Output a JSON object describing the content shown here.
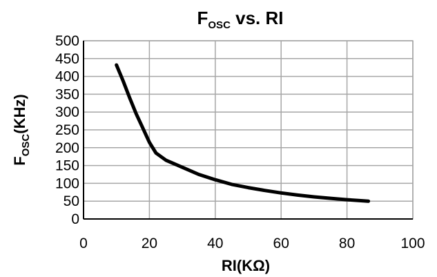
{
  "chart_data": {
    "type": "line",
    "title": {
      "main": "F",
      "sub": "OSC",
      "rest": " vs.  RI"
    },
    "xlabel": "RI(KΩ)",
    "ylabel": {
      "main": "F",
      "sub": "OSC",
      "rest": "(KHz)"
    },
    "xlim": [
      0,
      100
    ],
    "ylim": [
      0,
      500
    ],
    "xticks": [
      0,
      20,
      40,
      60,
      80,
      100
    ],
    "yticks": [
      0,
      50,
      100,
      150,
      200,
      250,
      300,
      350,
      400,
      450,
      500
    ],
    "grid": true,
    "legend": "none",
    "line_color": "#000000",
    "grid_color": "#a6a6a6",
    "series": [
      {
        "x": [
          10,
          12,
          14,
          16,
          18,
          20,
          22,
          25,
          30,
          35,
          40,
          45,
          50,
          55,
          60,
          65,
          70,
          75,
          80,
          85,
          86.5
        ],
        "values": [
          432,
          388,
          340,
          295,
          255,
          215,
          185,
          165,
          145,
          125,
          110,
          97,
          88,
          80,
          73,
          67,
          62,
          58,
          54,
          51,
          50
        ]
      }
    ]
  }
}
